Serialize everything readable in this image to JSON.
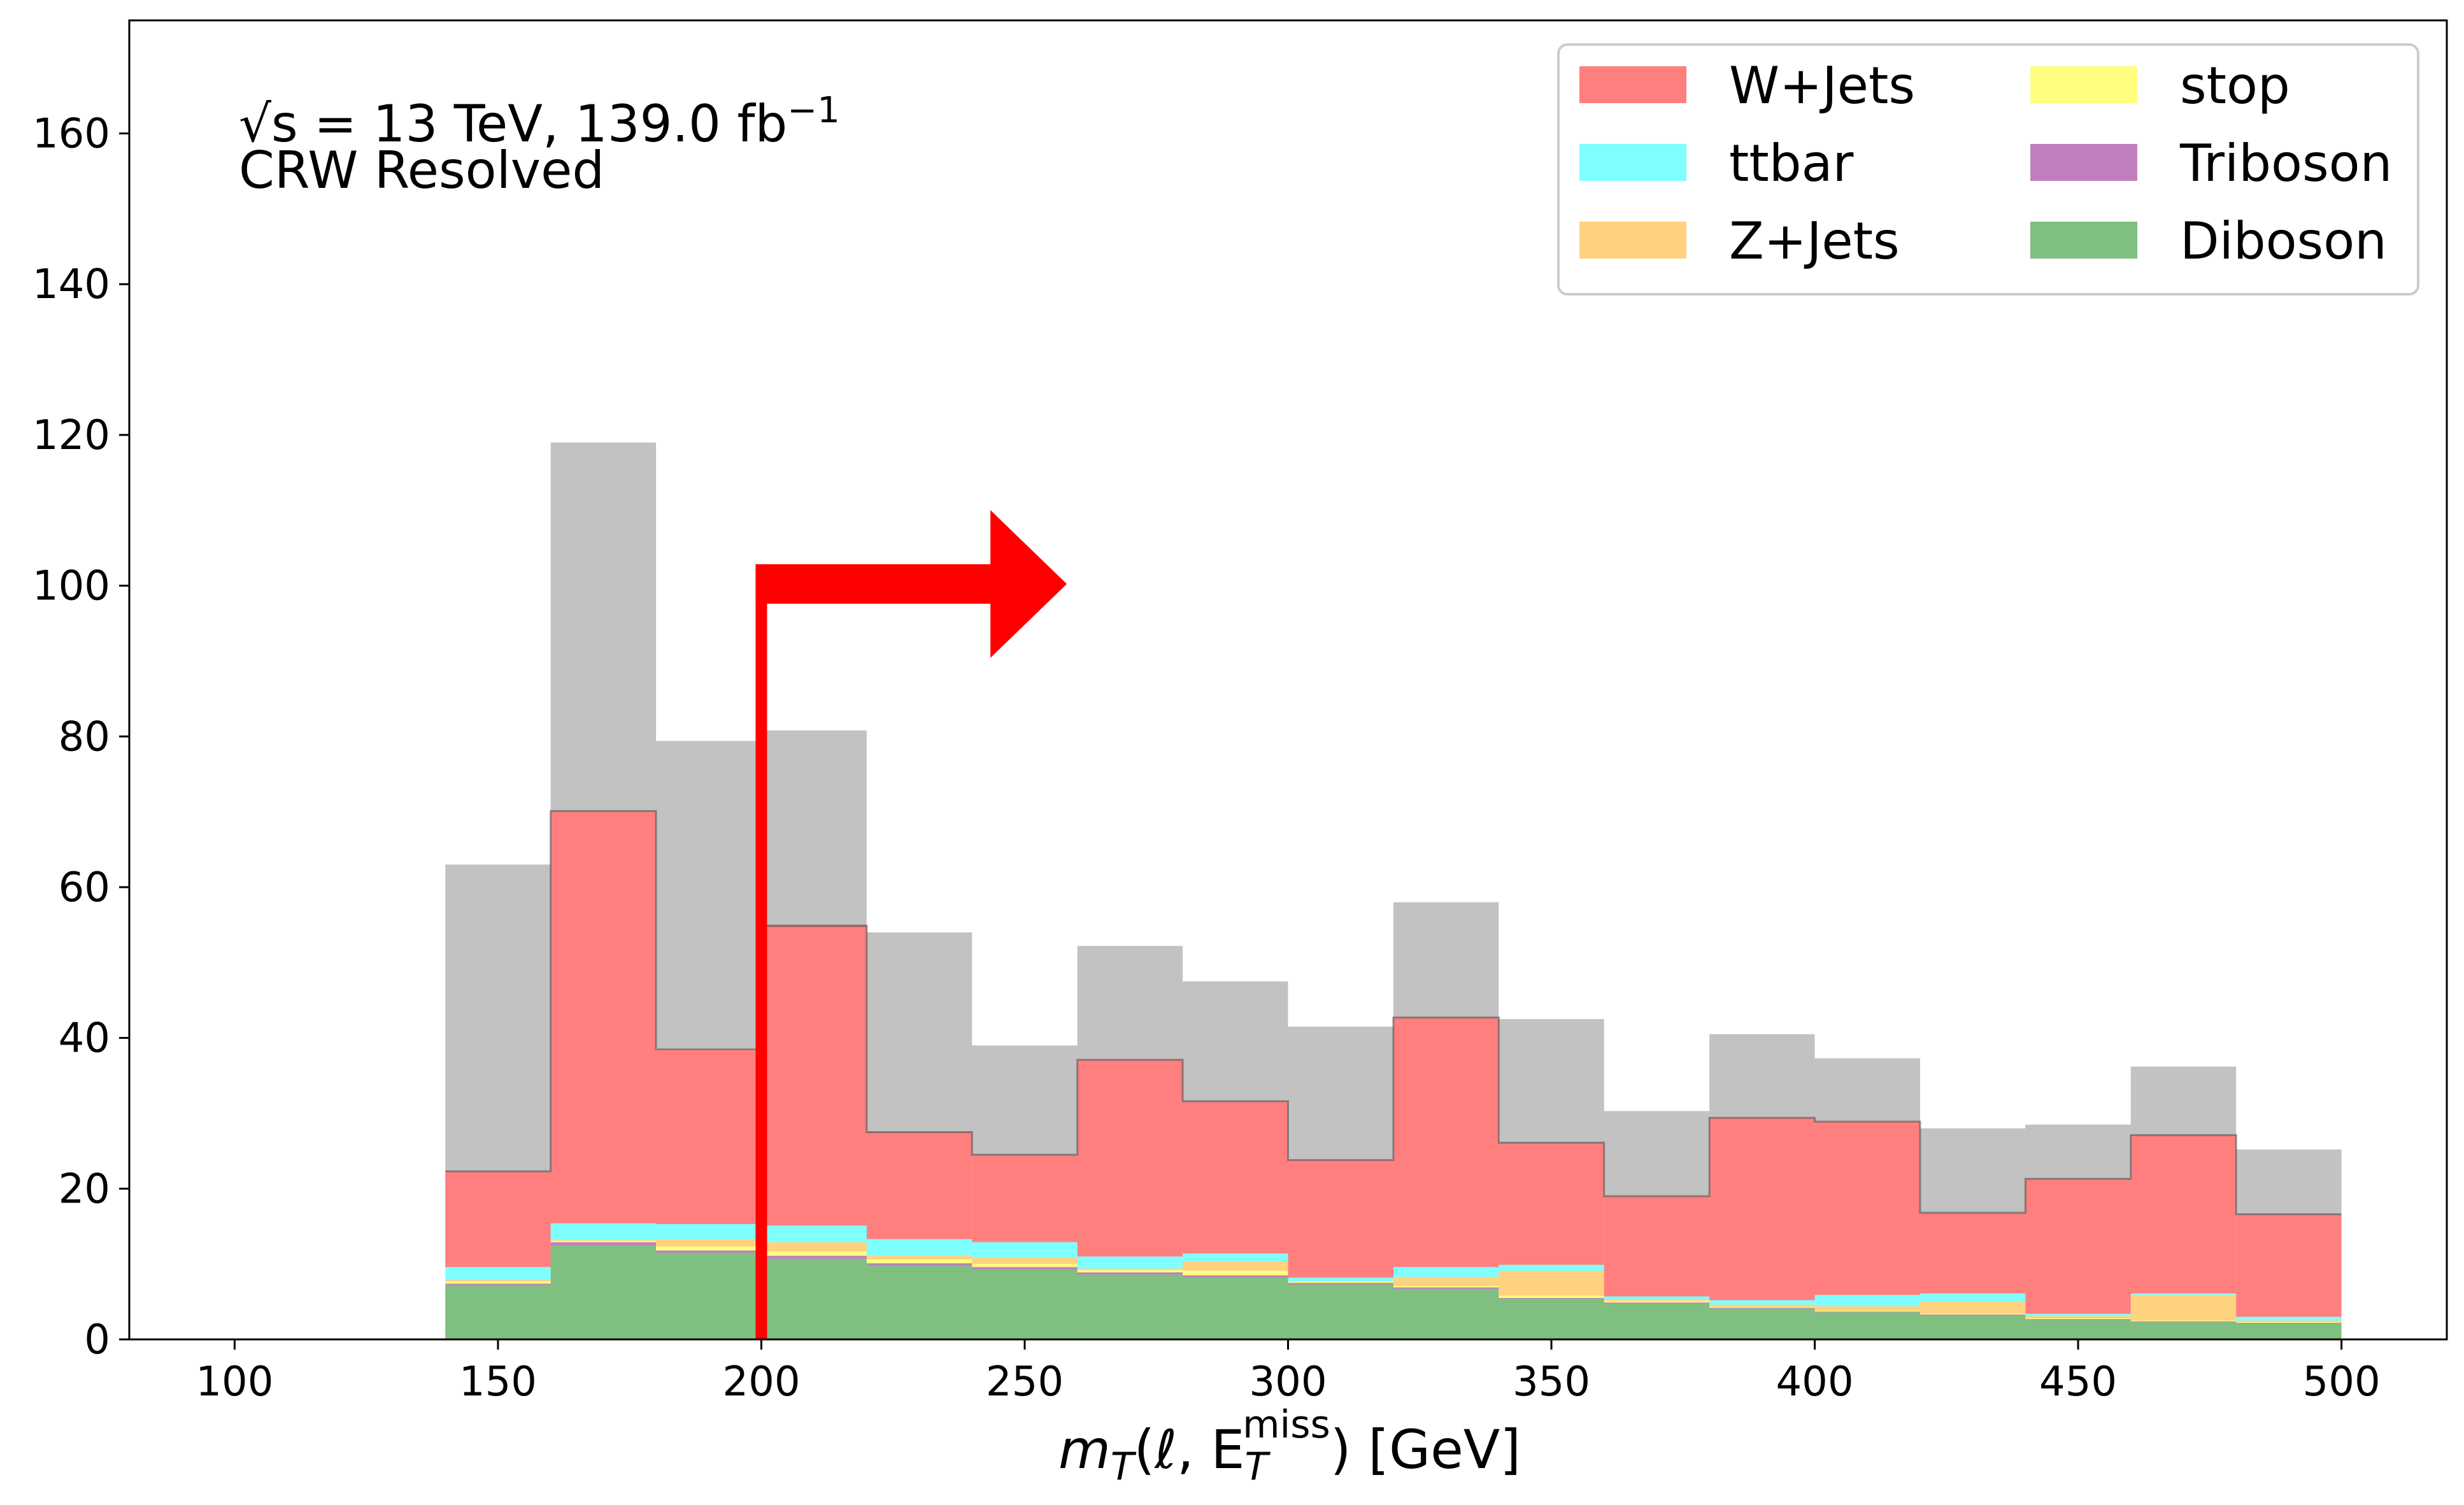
{
  "chart_data": {
    "type": "histogram-stacked",
    "annotation": {
      "energy_prefix": "√s = 13 TeV, ",
      "lumi": "139.0 fb",
      "lumi_sup": "−1",
      "region": "CRW Resolved"
    },
    "xlabel": {
      "m": "m",
      "t": "T",
      "args": "(ℓ, E",
      "miss": "miss",
      "t2": "T",
      "unit": ") [GeV]"
    },
    "xlim": [
      80,
      520
    ],
    "ylim": [
      0,
      175
    ],
    "xticks": [
      "100",
      "150",
      "200",
      "250",
      "300",
      "350",
      "400",
      "450",
      "500"
    ],
    "yticks": [
      "0",
      "20",
      "40",
      "60",
      "80",
      "100",
      "120",
      "140",
      "160"
    ],
    "bin_edges": [
      140,
      160,
      180,
      200,
      220,
      240,
      260,
      280,
      300,
      320,
      340,
      360,
      380,
      400,
      420,
      440,
      460,
      480,
      500
    ],
    "series": [
      {
        "name": "Diboson",
        "color": "#008000",
        "alpha": 0.5,
        "values": [
          7.2,
          12.5,
          11.5,
          10.7,
          9.8,
          9.3,
          8.6,
          8.2,
          7.3,
          6.7,
          5.4,
          4.8,
          4.1,
          3.6,
          3.2,
          2.6,
          2.3,
          2.1
        ]
      },
      {
        "name": "Triboson",
        "color": "#800080",
        "alpha": 0.5,
        "values": [
          0.2,
          0.4,
          0.3,
          0.4,
          0.3,
          0.3,
          0.3,
          0.3,
          0.2,
          0.2,
          0.1,
          0.1,
          0.1,
          0.1,
          0.1,
          0.1,
          0.1,
          0.1
        ]
      },
      {
        "name": "stop",
        "color": "#ffff00",
        "alpha": 0.5,
        "values": [
          0.3,
          0.2,
          0.5,
          0.6,
          0.5,
          0.4,
          0.3,
          0.6,
          0.2,
          0.2,
          0.3,
          0.2,
          0.1,
          0.1,
          0.1,
          0.1,
          0.1,
          0.1
        ]
      },
      {
        "name": "Z+Jets",
        "color": "#ffa500",
        "alpha": 0.5,
        "values": [
          0.2,
          0.1,
          1.0,
          1.2,
          0.5,
          0.8,
          0.2,
          1.3,
          0.0,
          1.2,
          3.3,
          0.2,
          0.3,
          0.6,
          1.6,
          0.3,
          3.4,
          0.2
        ]
      },
      {
        "name": "ttbar",
        "color": "#00ffff",
        "alpha": 0.5,
        "values": [
          1.7,
          2.2,
          2.0,
          2.2,
          2.2,
          2.1,
          1.6,
          1.0,
          0.5,
          1.3,
          0.8,
          0.4,
          0.6,
          1.5,
          1.1,
          0.3,
          0.2,
          0.5
        ]
      },
      {
        "name": "W+Jets",
        "color": "#ff0000",
        "alpha": 0.5,
        "values": [
          12.7,
          54.7,
          23.2,
          39.8,
          14.2,
          11.6,
          26.1,
          20.2,
          15.6,
          33.1,
          16.2,
          13.3,
          24.2,
          23.0,
          10.7,
          17.9,
          21.0,
          13.6
        ]
      }
    ],
    "total_uncertainty": {
      "color": "#808080",
      "alpha": 0.48,
      "upper": [
        63,
        119,
        79.4,
        80.8,
        54,
        39,
        52.2,
        47.5,
        41.5,
        58,
        42.5,
        30.3,
        40.5,
        37.3,
        28,
        28.5,
        36.2,
        25.2
      ],
      "lower": [
        22.3,
        70.1,
        38.6,
        54.7,
        27.4,
        24.5,
        37.1,
        31.6,
        23.8,
        42.7,
        26.1,
        19,
        29.4,
        28.9,
        16.8,
        21.3,
        27.1,
        16.6
      ]
    },
    "cut_arrow": {
      "x": 200,
      "y": 102,
      "x_end": 258,
      "color": "#ff0000"
    },
    "legend": {
      "position": "upper right",
      "ncol": 2,
      "entries": [
        {
          "label": "W+Jets",
          "color": "#ff0000"
        },
        {
          "label": "stop",
          "color": "#ffff00"
        },
        {
          "label": "ttbar",
          "color": "#00ffff"
        },
        {
          "label": "Triboson",
          "color": "#800080"
        },
        {
          "label": "Z+Jets",
          "color": "#ffa500"
        },
        {
          "label": "Diboson",
          "color": "#008000"
        }
      ]
    }
  }
}
